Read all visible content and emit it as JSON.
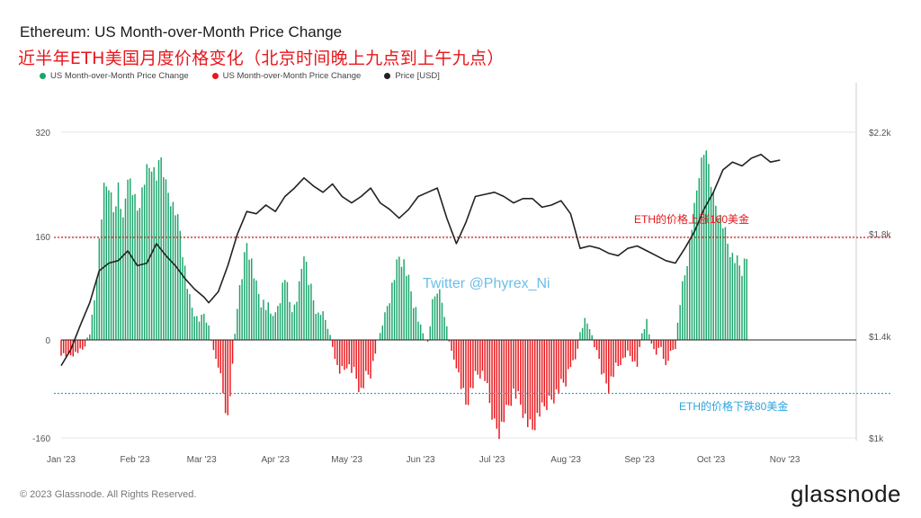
{
  "header": {
    "title": "Ethereum: US Month-over-Month Price Change",
    "subtitle": "近半年ETH美国月度价格变化（北京时间晚上九点到上午九点）"
  },
  "legend": [
    {
      "label": "US Month-over-Month Price Change",
      "color": "#1aa56b"
    },
    {
      "label": "US Month-over-Month Price Change",
      "color": "#e8161b"
    },
    {
      "label": "Price [USD]",
      "color": "#222222"
    }
  ],
  "annotations": {
    "up_label": "ETH的价格上涨160美金",
    "down_label": "ETH的价格下跌80美金",
    "watermark": "Twitter @Phyrex_Ni",
    "up_color": "#e8161b",
    "down_color": "#2aa6df"
  },
  "footer": {
    "copyright": "© 2023 Glassnode. All Rights Reserved.",
    "brand": "glassnode"
  },
  "chart_data": {
    "type": "bar",
    "title": "Ethereum: US Month-over-Month Price Change",
    "x_tick_labels": [
      "Jan '23",
      "Feb '23",
      "Mar '23",
      "Apr '23",
      "May '23",
      "Jun '23",
      "Jul '23",
      "Aug '23",
      "Sep '23",
      "Oct '23",
      "Nov '23"
    ],
    "y_left_ticks": [
      "320",
      "160",
      "0",
      "-160"
    ],
    "y_left_range": [
      -160,
      320
    ],
    "y_right_ticks": [
      "$2.2k",
      "$1.8k",
      "$1.4k",
      "$1k"
    ],
    "y_right_range": [
      1000,
      2200
    ],
    "y_right_scale": "log",
    "reference_lines": [
      {
        "value": 160,
        "axis": "left",
        "color": "#e8161b",
        "style": "dotted"
      },
      {
        "value": -80,
        "axis": "left",
        "color": "#2aa6df",
        "style": "dotted"
      }
    ],
    "x_range_days": [
      0,
      334
    ],
    "series": [
      {
        "name": "US Month-over-Month Price Change",
        "axis": "left",
        "note": "bars: green when positive, red when negative; x = day offset from Jan 1 2023",
        "points": [
          [
            0,
            -20
          ],
          [
            3,
            -25
          ],
          [
            6,
            -20
          ],
          [
            9,
            -15
          ],
          [
            12,
            10
          ],
          [
            14,
            60
          ],
          [
            16,
            150
          ],
          [
            18,
            230
          ],
          [
            20,
            240
          ],
          [
            22,
            200
          ],
          [
            24,
            240
          ],
          [
            26,
            180
          ],
          [
            28,
            260
          ],
          [
            30,
            230
          ],
          [
            32,
            200
          ],
          [
            34,
            230
          ],
          [
            36,
            260
          ],
          [
            38,
            270
          ],
          [
            40,
            250
          ],
          [
            42,
            280
          ],
          [
            44,
            240
          ],
          [
            46,
            220
          ],
          [
            48,
            200
          ],
          [
            50,
            170
          ],
          [
            52,
            110
          ],
          [
            54,
            60
          ],
          [
            56,
            40
          ],
          [
            58,
            30
          ],
          [
            60,
            40
          ],
          [
            62,
            20
          ],
          [
            64,
            -20
          ],
          [
            66,
            -40
          ],
          [
            68,
            -80
          ],
          [
            70,
            -120
          ],
          [
            72,
            -40
          ],
          [
            74,
            60
          ],
          [
            76,
            100
          ],
          [
            78,
            150
          ],
          [
            80,
            120
          ],
          [
            82,
            80
          ],
          [
            84,
            60
          ],
          [
            86,
            50
          ],
          [
            88,
            40
          ],
          [
            90,
            40
          ],
          [
            92,
            70
          ],
          [
            94,
            100
          ],
          [
            96,
            60
          ],
          [
            98,
            50
          ],
          [
            100,
            80
          ],
          [
            102,
            140
          ],
          [
            104,
            90
          ],
          [
            106,
            60
          ],
          [
            108,
            40
          ],
          [
            110,
            40
          ],
          [
            112,
            20
          ],
          [
            114,
            -10
          ],
          [
            116,
            -40
          ],
          [
            118,
            -50
          ],
          [
            120,
            -40
          ],
          [
            122,
            -45
          ],
          [
            124,
            -60
          ],
          [
            126,
            -80
          ],
          [
            128,
            -60
          ],
          [
            130,
            -50
          ],
          [
            132,
            -20
          ],
          [
            134,
            10
          ],
          [
            136,
            40
          ],
          [
            138,
            70
          ],
          [
            140,
            100
          ],
          [
            142,
            130
          ],
          [
            144,
            120
          ],
          [
            146,
            90
          ],
          [
            148,
            60
          ],
          [
            150,
            30
          ],
          [
            152,
            10
          ],
          [
            154,
            -5
          ],
          [
            156,
            50
          ],
          [
            158,
            80
          ],
          [
            160,
            60
          ],
          [
            162,
            20
          ],
          [
            164,
            -20
          ],
          [
            166,
            -40
          ],
          [
            168,
            -70
          ],
          [
            170,
            -100
          ],
          [
            172,
            -80
          ],
          [
            174,
            -60
          ],
          [
            176,
            -50
          ],
          [
            178,
            -60
          ],
          [
            180,
            -100
          ],
          [
            182,
            -130
          ],
          [
            184,
            -140
          ],
          [
            186,
            -120
          ],
          [
            188,
            -100
          ],
          [
            190,
            -80
          ],
          [
            192,
            -90
          ],
          [
            194,
            -110
          ],
          [
            196,
            -130
          ],
          [
            198,
            -140
          ],
          [
            200,
            -120
          ],
          [
            202,
            -110
          ],
          [
            204,
            -100
          ],
          [
            206,
            -90
          ],
          [
            208,
            -80
          ],
          [
            210,
            -70
          ],
          [
            212,
            -60
          ],
          [
            214,
            -40
          ],
          [
            216,
            -30
          ],
          [
            218,
            10
          ],
          [
            220,
            30
          ],
          [
            222,
            20
          ],
          [
            224,
            -10
          ],
          [
            226,
            -30
          ],
          [
            228,
            -60
          ],
          [
            230,
            -70
          ],
          [
            232,
            -50
          ],
          [
            234,
            -40
          ],
          [
            236,
            -30
          ],
          [
            238,
            -20
          ],
          [
            240,
            -30
          ],
          [
            242,
            -40
          ],
          [
            244,
            10
          ],
          [
            246,
            30
          ],
          [
            248,
            -10
          ],
          [
            250,
            -20
          ],
          [
            252,
            -10
          ],
          [
            254,
            -40
          ],
          [
            256,
            -20
          ],
          [
            258,
            -10
          ],
          [
            260,
            60
          ],
          [
            262,
            100
          ],
          [
            264,
            150
          ],
          [
            266,
            200
          ],
          [
            268,
            260
          ],
          [
            270,
            290
          ],
          [
            272,
            270
          ],
          [
            274,
            220
          ],
          [
            276,
            200
          ],
          [
            278,
            180
          ],
          [
            280,
            150
          ],
          [
            282,
            130
          ],
          [
            284,
            120
          ],
          [
            286,
            110
          ],
          [
            288,
            130
          ]
        ]
      },
      {
        "name": "Price [USD]",
        "axis": "right",
        "points": [
          [
            0,
            1210
          ],
          [
            4,
            1260
          ],
          [
            8,
            1340
          ],
          [
            12,
            1420
          ],
          [
            16,
            1540
          ],
          [
            20,
            1570
          ],
          [
            24,
            1580
          ],
          [
            28,
            1620
          ],
          [
            32,
            1560
          ],
          [
            36,
            1570
          ],
          [
            40,
            1650
          ],
          [
            44,
            1600
          ],
          [
            48,
            1560
          ],
          [
            52,
            1510
          ],
          [
            56,
            1470
          ],
          [
            60,
            1440
          ],
          [
            62,
            1420
          ],
          [
            66,
            1460
          ],
          [
            70,
            1560
          ],
          [
            74,
            1690
          ],
          [
            78,
            1790
          ],
          [
            82,
            1780
          ],
          [
            86,
            1820
          ],
          [
            90,
            1790
          ],
          [
            94,
            1860
          ],
          [
            98,
            1900
          ],
          [
            102,
            1950
          ],
          [
            106,
            1910
          ],
          [
            110,
            1880
          ],
          [
            114,
            1920
          ],
          [
            118,
            1860
          ],
          [
            122,
            1830
          ],
          [
            126,
            1860
          ],
          [
            130,
            1900
          ],
          [
            134,
            1830
          ],
          [
            138,
            1800
          ],
          [
            142,
            1760
          ],
          [
            146,
            1800
          ],
          [
            150,
            1860
          ],
          [
            154,
            1880
          ],
          [
            158,
            1900
          ],
          [
            162,
            1760
          ],
          [
            166,
            1650
          ],
          [
            170,
            1740
          ],
          [
            174,
            1860
          ],
          [
            178,
            1870
          ],
          [
            182,
            1880
          ],
          [
            186,
            1860
          ],
          [
            190,
            1830
          ],
          [
            194,
            1850
          ],
          [
            198,
            1850
          ],
          [
            202,
            1810
          ],
          [
            206,
            1820
          ],
          [
            210,
            1840
          ],
          [
            214,
            1780
          ],
          [
            218,
            1630
          ],
          [
            222,
            1640
          ],
          [
            226,
            1630
          ],
          [
            230,
            1610
          ],
          [
            234,
            1600
          ],
          [
            238,
            1630
          ],
          [
            242,
            1640
          ],
          [
            246,
            1620
          ],
          [
            250,
            1600
          ],
          [
            254,
            1580
          ],
          [
            258,
            1570
          ],
          [
            262,
            1630
          ],
          [
            266,
            1700
          ],
          [
            270,
            1800
          ],
          [
            274,
            1880
          ],
          [
            278,
            1990
          ],
          [
            282,
            2030
          ],
          [
            286,
            2010
          ],
          [
            290,
            2050
          ],
          [
            294,
            2070
          ],
          [
            298,
            2030
          ],
          [
            302,
            2040
          ]
        ]
      }
    ]
  }
}
